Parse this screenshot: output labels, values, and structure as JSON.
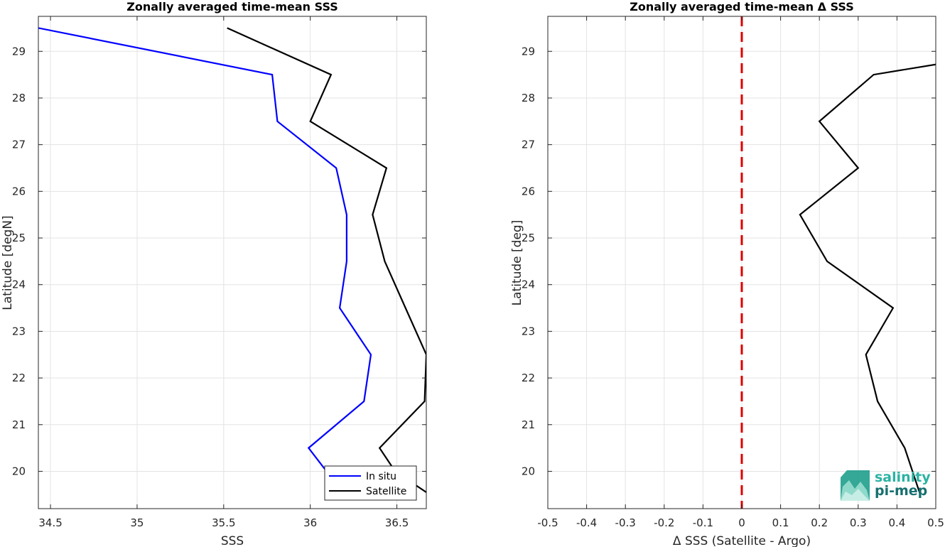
{
  "chart_data": [
    {
      "type": "line",
      "title": "Zonally averaged time-mean SSS",
      "xlabel": "SSS",
      "ylabel": "Latitude [degN]",
      "xlim": [
        34.43,
        36.67
      ],
      "ylim": [
        19.2,
        29.75
      ],
      "xticks": [
        34.5,
        35,
        35.5,
        36,
        36.5
      ],
      "xtick_labels": [
        "34.5",
        "35",
        "35.5",
        "36",
        "36.5"
      ],
      "yticks": [
        20,
        21,
        22,
        23,
        24,
        25,
        26,
        27,
        28,
        29
      ],
      "ytick_labels": [
        "20",
        "21",
        "22",
        "23",
        "24",
        "25",
        "26",
        "27",
        "28",
        "29"
      ],
      "grid": true,
      "legend_position": "bottom-right",
      "series": [
        {
          "name": "In situ",
          "color": "#0000ff",
          "points": [
            [
              34.43,
              29.5
            ],
            [
              35.78,
              28.5
            ],
            [
              35.81,
              27.5
            ],
            [
              36.15,
              26.5
            ],
            [
              36.21,
              25.5
            ],
            [
              36.21,
              24.5
            ],
            [
              36.17,
              23.5
            ],
            [
              36.35,
              22.5
            ],
            [
              36.31,
              21.5
            ],
            [
              35.99,
              20.5
            ],
            [
              36.1,
              19.97
            ]
          ]
        },
        {
          "name": "Satellite",
          "color": "#000000",
          "points": [
            [
              35.52,
              29.5
            ],
            [
              36.12,
              28.5
            ],
            [
              36.0,
              27.5
            ],
            [
              36.44,
              26.5
            ],
            [
              36.36,
              25.5
            ],
            [
              36.43,
              24.5
            ],
            [
              36.55,
              23.5
            ],
            [
              36.67,
              22.5
            ],
            [
              36.66,
              21.5
            ],
            [
              36.4,
              20.5
            ],
            [
              36.49,
              20.0
            ],
            [
              36.67,
              19.55
            ]
          ]
        }
      ]
    },
    {
      "type": "line",
      "title": "Zonally averaged time-mean Δ SSS",
      "xlabel": "Δ SSS (Satellite - Argo)",
      "ylabel": "Latitude [deg]",
      "xlim": [
        -0.5,
        0.5
      ],
      "ylim": [
        19.2,
        29.75
      ],
      "xticks": [
        -0.5,
        -0.4,
        -0.3,
        -0.2,
        -0.1,
        0,
        0.1,
        0.2,
        0.3,
        0.4,
        0.5
      ],
      "xtick_labels": [
        "-0.5",
        "-0.4",
        "-0.3",
        "-0.2",
        "-0.1",
        "0",
        "0.1",
        "0.2",
        "0.3",
        "0.4",
        "0.5"
      ],
      "yticks": [
        20,
        21,
        22,
        23,
        24,
        25,
        26,
        27,
        28,
        29
      ],
      "ytick_labels": [
        "20",
        "21",
        "22",
        "23",
        "24",
        "25",
        "26",
        "27",
        "28",
        "29"
      ],
      "grid": true,
      "reference_line": {
        "x": 0,
        "color": "#e00000",
        "style": "dashed"
      },
      "series": [
        {
          "color": "#000000",
          "points": [
            [
              0.5,
              28.72
            ],
            [
              0.34,
              28.5
            ],
            [
              0.2,
              27.5
            ],
            [
              0.3,
              26.5
            ],
            [
              0.15,
              25.5
            ],
            [
              0.22,
              24.5
            ],
            [
              0.39,
              23.5
            ],
            [
              0.32,
              22.5
            ],
            [
              0.35,
              21.5
            ],
            [
              0.42,
              20.5
            ],
            [
              0.46,
              19.5
            ]
          ]
        }
      ]
    }
  ],
  "logo": {
    "line1": "salinity",
    "line2": "pi-mep"
  }
}
